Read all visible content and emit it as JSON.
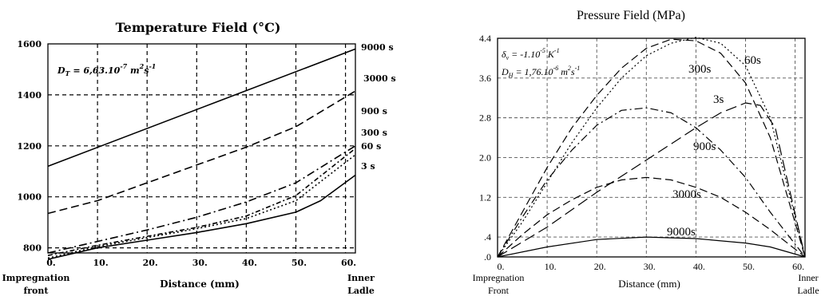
{
  "chart_data": [
    {
      "type": "line",
      "title": "Temperature Field (°C)",
      "xlabel": "Distance (mm)",
      "ylabel": "",
      "xlim": [
        0,
        62
      ],
      "ylim": [
        780,
        1600
      ],
      "x_ticks": [
        "0.",
        "10.",
        "20.",
        "30.",
        "40.",
        "50.",
        "60."
      ],
      "y_ticks": [
        "800",
        "1000",
        "1200",
        "1400",
        "1600"
      ],
      "x_left_label": [
        "Impregnation",
        "front"
      ],
      "x_right_label": [
        "Inner",
        "Ladle"
      ],
      "annotation": {
        "base": "D",
        "sub": "T",
        "mid": " = 6,63.10",
        "exp1": "-7",
        "unit": " m",
        "exp2": "2",
        "tail": "s",
        "exp3": "-1"
      },
      "grid": true,
      "series": [
        {
          "name": "9000 s",
          "dash": "solid",
          "x": [
            0,
            62
          ],
          "y": [
            1120,
            1580
          ]
        },
        {
          "name": "3000 s",
          "dash": "dash",
          "x": [
            0,
            10,
            20,
            30,
            40,
            50,
            62
          ],
          "y": [
            935,
            985,
            1055,
            1125,
            1195,
            1275,
            1415
          ]
        },
        {
          "name": "900 s",
          "dash": "dashdot",
          "x": [
            0,
            10,
            20,
            30,
            40,
            50,
            62
          ],
          "y": [
            780,
            825,
            870,
            920,
            980,
            1055,
            1200
          ]
        },
        {
          "name": "300 s",
          "dash": "dashdot2",
          "x": [
            0,
            10,
            20,
            30,
            40,
            50,
            62
          ],
          "y": [
            770,
            810,
            845,
            880,
            925,
            1005,
            1190
          ]
        },
        {
          "name": "60 s",
          "dash": "dot",
          "x": [
            0,
            10,
            20,
            30,
            40,
            50,
            62
          ],
          "y": [
            760,
            805,
            840,
            875,
            915,
            985,
            1165
          ]
        },
        {
          "name": "3 s",
          "dash": "solid",
          "x": [
            0,
            10,
            20,
            30,
            40,
            50,
            55,
            62
          ],
          "y": [
            755,
            800,
            830,
            860,
            895,
            940,
            985,
            1085
          ]
        }
      ]
    },
    {
      "type": "line",
      "title": "Pressure Field (MPa)",
      "xlabel": "Distance (mm)",
      "ylabel": "",
      "xlim": [
        0,
        62
      ],
      "ylim": [
        0,
        4.4
      ],
      "x_ticks": [
        "0.",
        "10.",
        "20.",
        "30.",
        "40.",
        "50.",
        "60."
      ],
      "y_ticks": [
        ".0",
        ".4",
        "1.2",
        "2.0",
        "2.8",
        "3.6",
        "4.4"
      ],
      "x_left_label": [
        "Impregnation",
        "Front"
      ],
      "x_right_label": [
        "Inner",
        "Ladle"
      ],
      "annotations": [
        {
          "base": "δ",
          "sub": "v",
          "mid": " = -1.10",
          "exp1": "-5",
          "unit": " K",
          "exp2": "-1",
          "tail": "",
          "exp3": ""
        },
        {
          "base": "D",
          "sub": "H",
          "mid": " = 1,76.10",
          "exp1": "-6",
          "unit": " m",
          "exp2": "2",
          "tail": "s",
          "exp3": "-1"
        }
      ],
      "grid": true,
      "series": [
        {
          "name": "60s",
          "dash": "dot",
          "x": [
            0,
            5,
            10,
            15,
            20,
            25,
            30,
            35,
            40,
            45,
            50,
            55,
            62
          ],
          "y": [
            0,
            0.7,
            1.5,
            2.3,
            3.0,
            3.6,
            4.05,
            4.3,
            4.42,
            4.3,
            3.85,
            2.8,
            0
          ]
        },
        {
          "name": "300s",
          "dash": "dash",
          "x": [
            0,
            5,
            10,
            15,
            20,
            25,
            30,
            35,
            40,
            45,
            50,
            55,
            62
          ],
          "y": [
            0,
            0.9,
            1.8,
            2.6,
            3.25,
            3.8,
            4.2,
            4.38,
            4.35,
            4.1,
            3.5,
            2.4,
            0
          ]
        },
        {
          "name": "3s",
          "dash": "longdash",
          "x": [
            0,
            10,
            20,
            30,
            40,
            45,
            50,
            53,
            56,
            62
          ],
          "y": [
            0,
            0.6,
            1.3,
            1.95,
            2.6,
            2.9,
            3.1,
            3.05,
            2.6,
            0
          ]
        },
        {
          "name": "900s",
          "dash": "dashdot",
          "x": [
            0,
            5,
            10,
            15,
            20,
            25,
            30,
            35,
            40,
            45,
            50,
            55,
            62
          ],
          "y": [
            0,
            0.8,
            1.55,
            2.15,
            2.65,
            2.95,
            3.0,
            2.9,
            2.6,
            2.15,
            1.6,
            0.9,
            0
          ]
        },
        {
          "name": "3000s",
          "dash": "dash",
          "x": [
            0,
            5,
            10,
            15,
            20,
            25,
            30,
            35,
            40,
            45,
            50,
            55,
            62
          ],
          "y": [
            0,
            0.45,
            0.85,
            1.15,
            1.4,
            1.55,
            1.6,
            1.55,
            1.4,
            1.2,
            0.9,
            0.55,
            0
          ]
        },
        {
          "name": "9000s",
          "dash": "solid",
          "x": [
            0,
            10,
            20,
            30,
            40,
            50,
            55,
            62
          ],
          "y": [
            0,
            0.2,
            0.35,
            0.4,
            0.37,
            0.28,
            0.2,
            0
          ]
        }
      ]
    }
  ]
}
